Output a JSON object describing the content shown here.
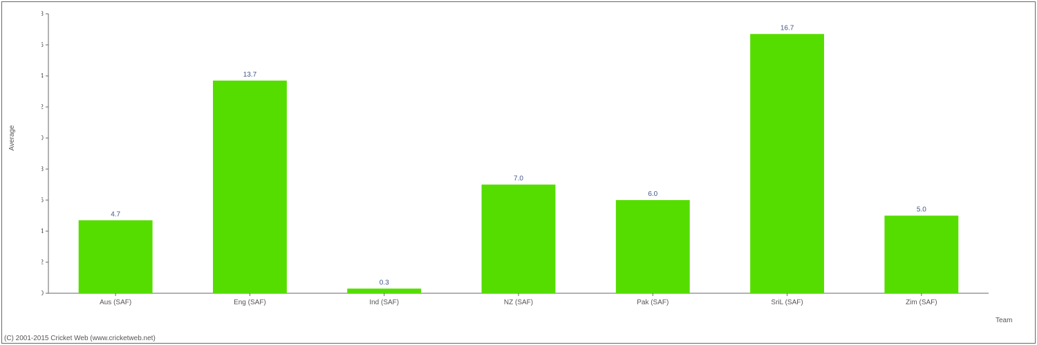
{
  "chart": {
    "type": "bar",
    "categories": [
      "Aus (SAF)",
      "Eng (SAF)",
      "Ind (SAF)",
      "NZ (SAF)",
      "Pak (SAF)",
      "SriL (SAF)",
      "Zim (SAF)"
    ],
    "values": [
      4.7,
      13.7,
      0.3,
      7.0,
      6.0,
      16.7,
      5.0
    ],
    "value_labels": [
      "4.7",
      "13.7",
      "0.3",
      "7.0",
      "6.0",
      "16.7",
      "5.0"
    ],
    "bar_color": "#55dd00",
    "ylim": [
      0,
      18
    ],
    "ytick_step": 2,
    "yticks": [
      0,
      2,
      4,
      6,
      8,
      10,
      12,
      14,
      16,
      18
    ],
    "xlabel": "Team",
    "ylabel": "Average",
    "background_color": "#ffffff",
    "axis_color": "#666666",
    "tick_label_color": "#555555",
    "bar_label_color": "#445588",
    "bar_width_ratio": 0.55,
    "label_fontsize": 10,
    "title_fontsize": 10
  },
  "copyright": "(C) 2001-2015 Cricket Web (www.cricketweb.net)"
}
